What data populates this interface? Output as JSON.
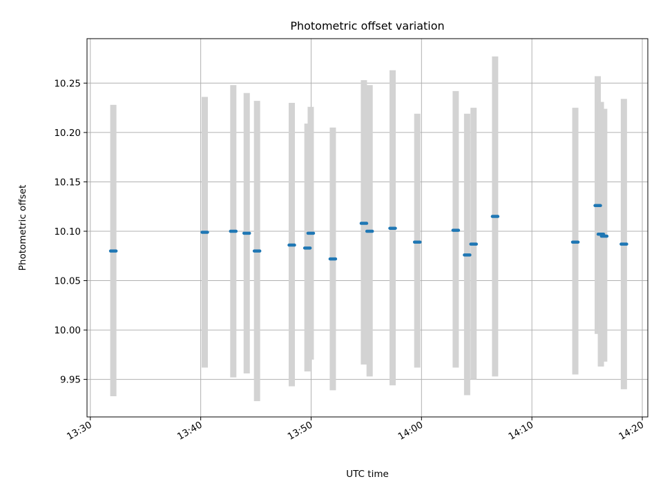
{
  "chart_data": {
    "type": "scatter",
    "title": "Photometric offset variation",
    "xlabel": "UTC time",
    "ylabel": "Photometric offset",
    "x_ticks": [
      "13:30",
      "13:40",
      "13:50",
      "14:00",
      "14:10",
      "14:20"
    ],
    "x_tick_minutes": [
      0,
      10,
      20,
      30,
      40,
      50
    ],
    "xlim_minutes": [
      -0.3,
      50.5
    ],
    "y_ticks": [
      "9.95",
      "10.00",
      "10.05",
      "10.10",
      "10.15",
      "10.20",
      "10.25"
    ],
    "y_tick_values": [
      9.95,
      10.0,
      10.05,
      10.1,
      10.15,
      10.2,
      10.25
    ],
    "ylim": [
      9.912,
      10.295
    ],
    "grid": true,
    "series_color": "#1f77b4",
    "errorbar_color": "#d3d3d3",
    "points": [
      {
        "x": "13:32:05",
        "y": 10.08,
        "err_low": 9.933,
        "err_high": 10.228
      },
      {
        "x": "13:40:22",
        "y": 10.099,
        "err_low": 9.962,
        "err_high": 10.236
      },
      {
        "x": "13:42:57",
        "y": 10.1,
        "err_low": 9.952,
        "err_high": 10.248
      },
      {
        "x": "13:44:10",
        "y": 10.098,
        "err_low": 9.956,
        "err_high": 10.24
      },
      {
        "x": "13:45:06",
        "y": 10.08,
        "err_low": 9.928,
        "err_high": 10.232
      },
      {
        "x": "13:48:15",
        "y": 10.086,
        "err_low": 9.943,
        "err_high": 10.23
      },
      {
        "x": "13:49:40",
        "y": 10.083,
        "err_low": 9.958,
        "err_high": 10.209
      },
      {
        "x": "13:49:58",
        "y": 10.098,
        "err_low": 9.97,
        "err_high": 10.226
      },
      {
        "x": "13:51:58",
        "y": 10.072,
        "err_low": 9.939,
        "err_high": 10.205
      },
      {
        "x": "13:54:47",
        "y": 10.108,
        "err_low": 9.965,
        "err_high": 10.253
      },
      {
        "x": "13:55:18",
        "y": 10.1,
        "err_low": 9.953,
        "err_high": 10.248
      },
      {
        "x": "13:57:23",
        "y": 10.103,
        "err_low": 9.944,
        "err_high": 10.263
      },
      {
        "x": "13:59:37",
        "y": 10.089,
        "err_low": 9.962,
        "err_high": 10.219
      },
      {
        "x": "14:03:06",
        "y": 10.101,
        "err_low": 9.962,
        "err_high": 10.242
      },
      {
        "x": "14:04:08",
        "y": 10.076,
        "err_low": 9.934,
        "err_high": 10.219
      },
      {
        "x": "14:04:43",
        "y": 10.087,
        "err_low": 9.95,
        "err_high": 10.225
      },
      {
        "x": "14:06:40",
        "y": 10.115,
        "err_low": 9.953,
        "err_high": 10.277
      },
      {
        "x": "14:13:56",
        "y": 10.089,
        "err_low": 9.955,
        "err_high": 10.225
      },
      {
        "x": "14:15:58",
        "y": 10.126,
        "err_low": 9.996,
        "err_high": 10.257
      },
      {
        "x": "14:16:15",
        "y": 10.097,
        "err_low": 9.963,
        "err_high": 10.231
      },
      {
        "x": "14:16:33",
        "y": 10.095,
        "err_low": 9.968,
        "err_high": 10.224
      },
      {
        "x": "14:18:20",
        "y": 10.087,
        "err_low": 9.94,
        "err_high": 10.234
      }
    ]
  }
}
